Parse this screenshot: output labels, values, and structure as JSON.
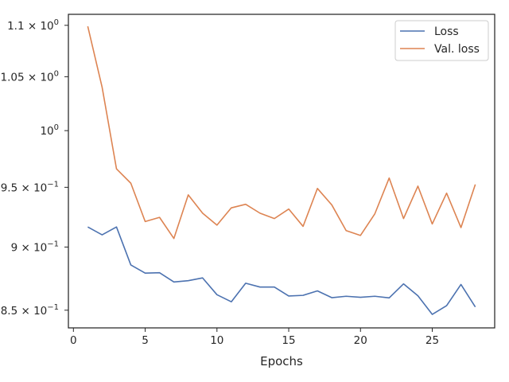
{
  "chart_data": {
    "type": "line",
    "xlabel": "Epochs",
    "ylabel": "",
    "title": "",
    "xlim": [
      -0.35,
      29.35
    ],
    "ylim": [
      0.8365,
      1.111
    ],
    "y_scale": "log",
    "grid": false,
    "legend_position": "top-right",
    "x": [
      1,
      2,
      3,
      4,
      5,
      6,
      7,
      8,
      9,
      10,
      11,
      12,
      13,
      14,
      15,
      16,
      17,
      18,
      19,
      20,
      21,
      22,
      23,
      24,
      25,
      26,
      27,
      28
    ],
    "series": [
      {
        "name": "Loss",
        "color": "#4c72b0",
        "values": [
          0.9165,
          0.91,
          0.9165,
          0.8855,
          0.879,
          0.8793,
          0.872,
          0.873,
          0.8752,
          0.862,
          0.8565,
          0.871,
          0.868,
          0.868,
          0.861,
          0.8615,
          0.865,
          0.8597,
          0.8608,
          0.86,
          0.8608,
          0.8595,
          0.8705,
          0.8612,
          0.8468,
          0.8535,
          0.87,
          0.8525
        ]
      },
      {
        "name": "Val. loss",
        "color": "#dd8452",
        "values": [
          1.099,
          1.04,
          0.966,
          0.9535,
          0.921,
          0.9245,
          0.907,
          0.9435,
          0.928,
          0.918,
          0.9325,
          0.9355,
          0.928,
          0.9235,
          0.9315,
          0.917,
          0.949,
          0.935,
          0.9135,
          0.9095,
          0.9275,
          0.958,
          0.9235,
          0.951,
          0.919,
          0.945,
          0.916,
          0.9525
        ]
      }
    ],
    "x_ticks": [
      {
        "value": 0,
        "label": "0"
      },
      {
        "value": 5,
        "label": "5"
      },
      {
        "value": 10,
        "label": "10"
      },
      {
        "value": 15,
        "label": "15"
      },
      {
        "value": 20,
        "label": "20"
      },
      {
        "value": 25,
        "label": "25"
      }
    ],
    "y_ticks": [
      {
        "value": 0.85,
        "mant": "8.5",
        "exp": "−1",
        "plain": ""
      },
      {
        "value": 0.9,
        "mant": "9",
        "exp": "−1",
        "plain": ""
      },
      {
        "value": 0.95,
        "mant": "9.5",
        "exp": "−1",
        "plain": ""
      },
      {
        "value": 1.0,
        "mant": "",
        "exp": "0",
        "plain": "10"
      },
      {
        "value": 1.05,
        "mant": "1.05",
        "exp": "0",
        "plain": ""
      },
      {
        "value": 1.1,
        "mant": "1.1",
        "exp": "0",
        "plain": ""
      }
    ]
  }
}
